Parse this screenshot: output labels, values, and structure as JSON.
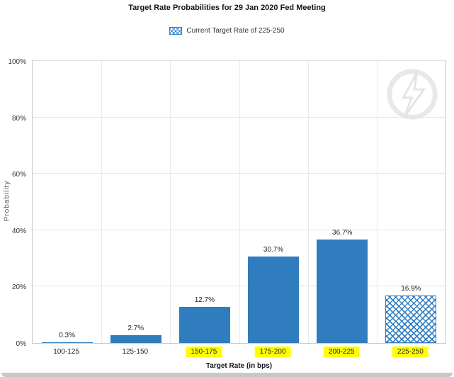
{
  "header": {
    "title": "Target Rate Probabilities for 29 Jan 2020 Fed Meeting"
  },
  "legend": {
    "swatch_icon": "crosshatch-swatch-icon",
    "label": "Current Target Rate of 225-250"
  },
  "watermark_icon": "quikstrike-logo-icon",
  "chart_data": {
    "type": "bar",
    "title": "Target Rate Probabilities for 29 Jan 2020 Fed Meeting",
    "categories": [
      "100-125",
      "125-150",
      "150-175",
      "175-200",
      "200-225",
      "225-250"
    ],
    "values": [
      0.3,
      2.7,
      12.7,
      30.7,
      36.7,
      16.9
    ],
    "value_labels": [
      "0.3%",
      "2.7%",
      "12.7%",
      "30.7%",
      "36.7%",
      "16.9%"
    ],
    "xlabel": "Target Rate (in bps)",
    "ylabel": "Probability",
    "ylim": [
      0,
      100
    ],
    "yticks": [
      0,
      20,
      40,
      60,
      80,
      100
    ],
    "ytick_labels": [
      "0%",
      "20%",
      "40%",
      "60%",
      "80%",
      "100%"
    ],
    "highlighted_categories": [
      "150-175",
      "175-200",
      "200-225",
      "225-250"
    ],
    "current_target_rate": "225-250",
    "bar_color": "#2f7cbe",
    "highlight_color": "#ffff00",
    "grid": true,
    "legend_position": "top-center"
  }
}
